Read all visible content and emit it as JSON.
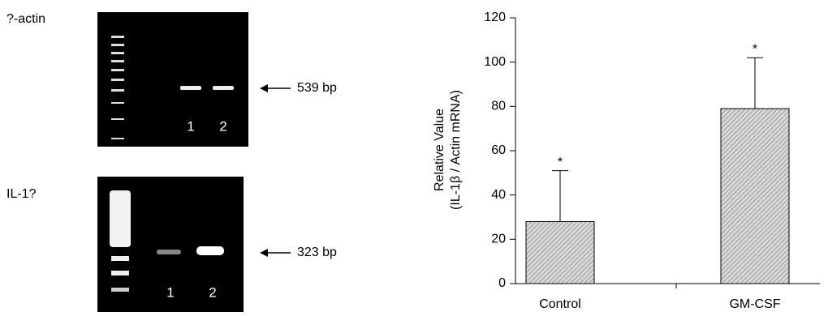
{
  "gels": [
    {
      "label": "?-actin",
      "size": "539 bp",
      "lanes": [
        "1",
        "2"
      ]
    },
    {
      "label": "IL-1?",
      "size": "323 bp",
      "lanes": [
        "1",
        "2"
      ]
    }
  ],
  "chart_data": {
    "type": "bar",
    "y_label": [
      "Relative Value",
      "(IL-1β / Actin mRNA)"
    ],
    "categories": [
      "Control",
      "GM-CSF"
    ],
    "values": [
      28,
      79
    ],
    "errors": [
      23,
      23
    ],
    "annotations": [
      "*",
      "*"
    ],
    "color": "#cfcfcf",
    "ylim": [
      0,
      120
    ],
    "yticks": [
      0,
      20,
      40,
      60,
      80,
      100,
      120
    ]
  }
}
